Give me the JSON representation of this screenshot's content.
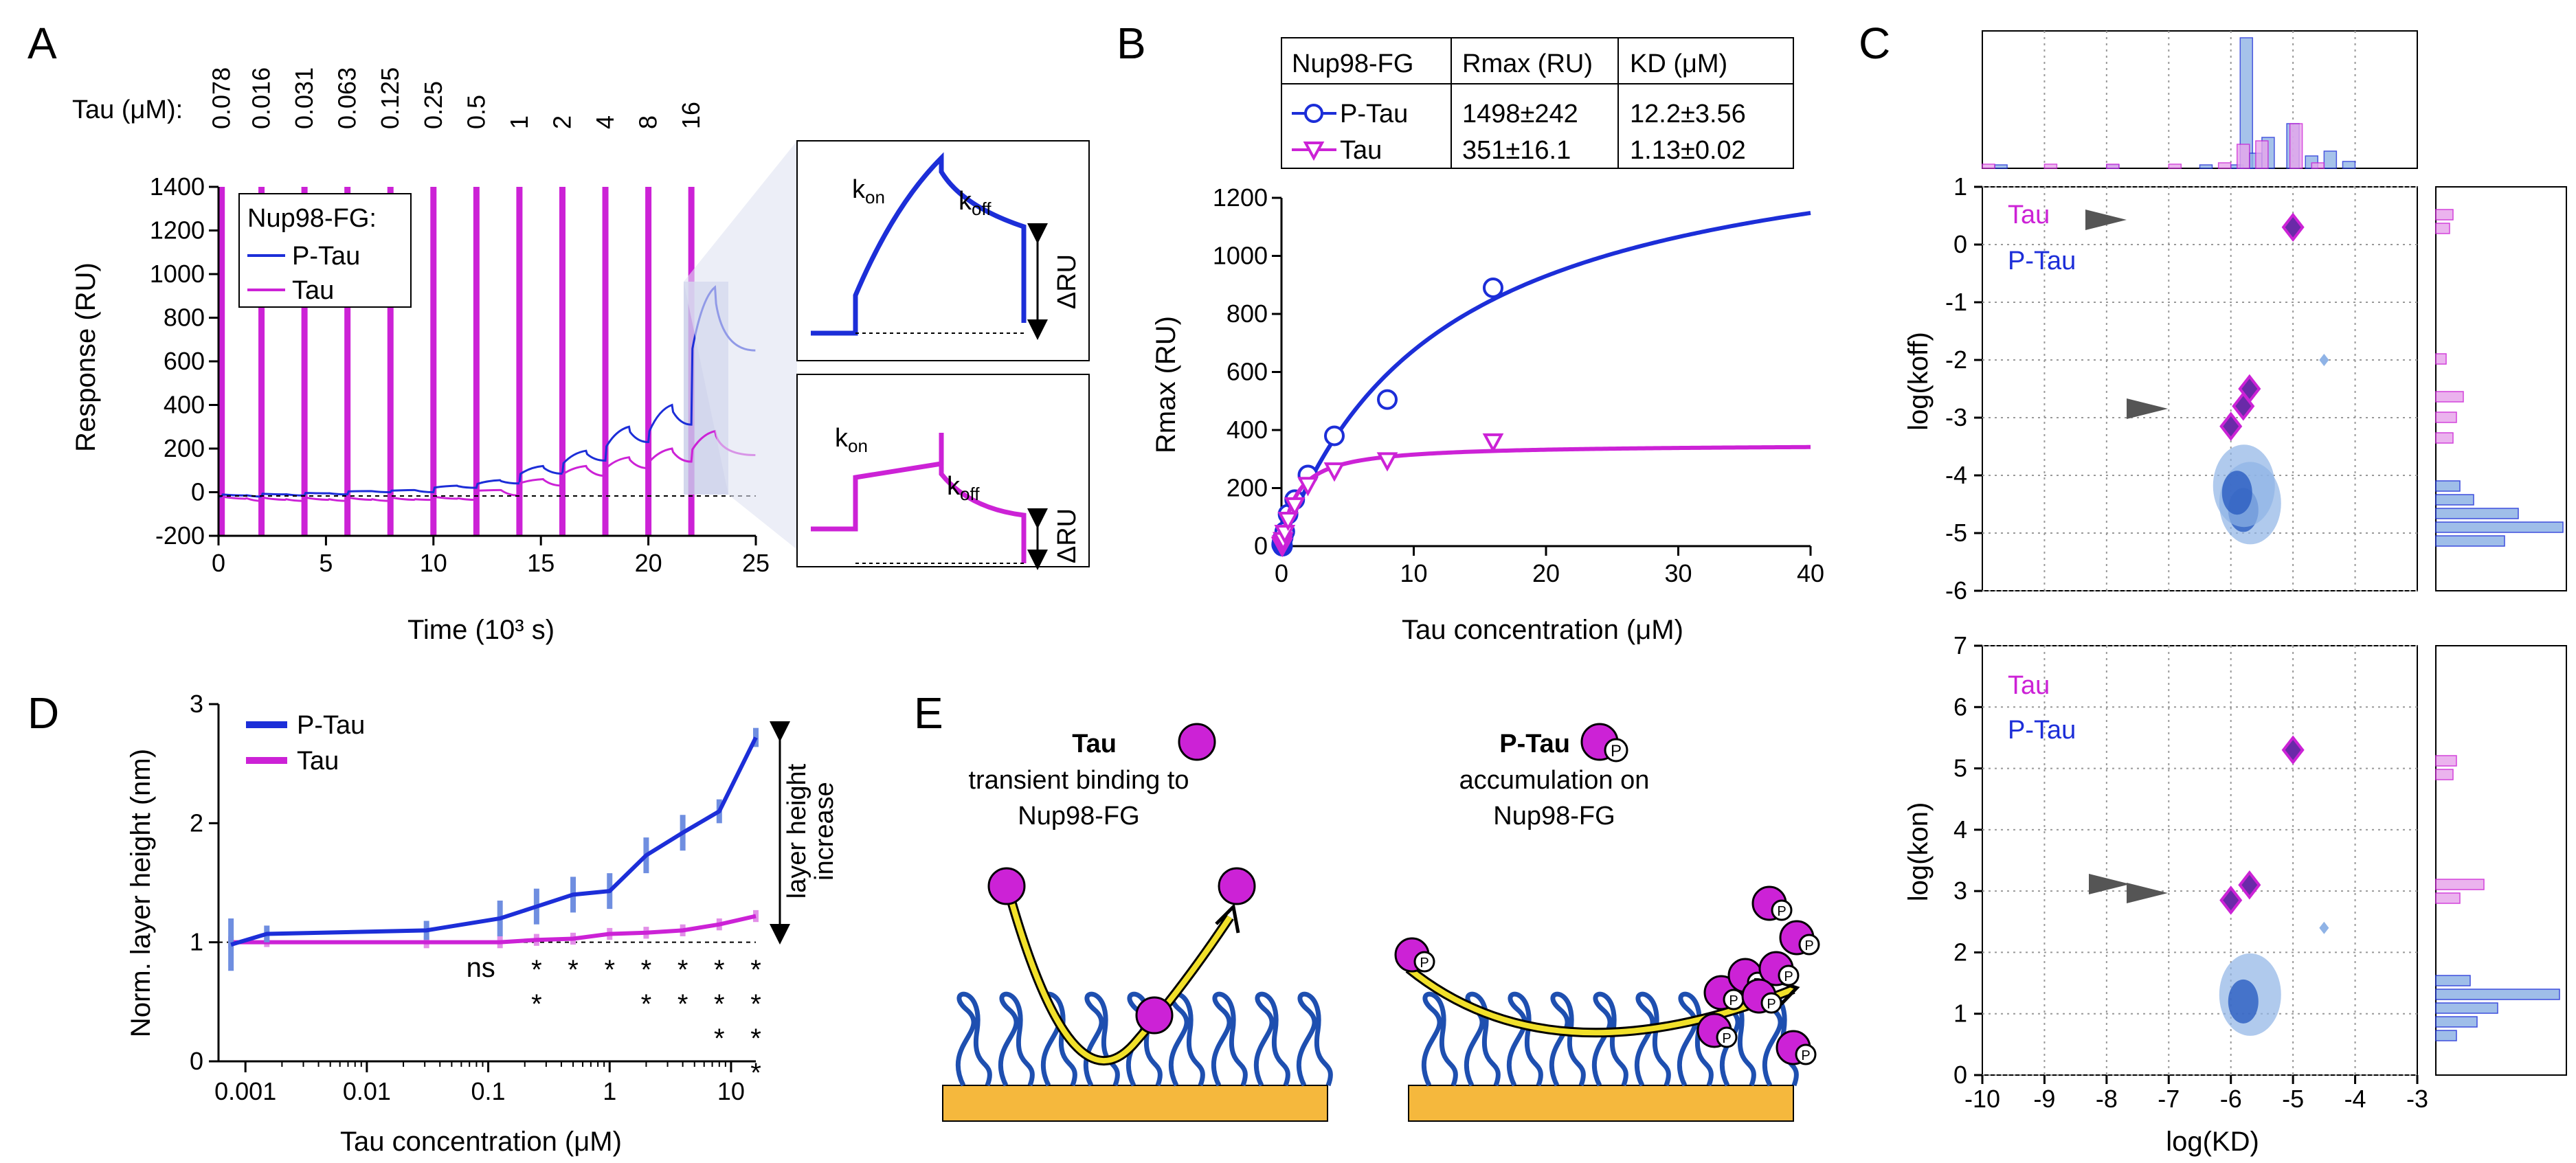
{
  "colors": {
    "ptau": "#1c2ed8",
    "tau": "#cc22d6",
    "ptau_light": "#8fb3e6",
    "tau_light": "#e8a6ec",
    "arrow": "#555555",
    "gold": "#f5b83d",
    "fg": "#1e4fb0",
    "yellow": "#f1e02a"
  },
  "panels": {
    "a": "A",
    "b": "B",
    "c": "C",
    "d": "D",
    "e": "E"
  },
  "panelA": {
    "tau_label": "Tau (μM):",
    "concentrations": [
      "0.078",
      "0.016",
      "0.031",
      "0.063",
      "0.125",
      "0.25",
      "0.5",
      "1",
      "2",
      "4",
      "8",
      "16"
    ],
    "legend_title": "Nup98-FG:",
    "legend": [
      "P-Tau",
      "Tau"
    ],
    "ylabel": "Response (RU)",
    "xlabel": "Time (10³ s)",
    "inset": {
      "kon": "k",
      "on": "on",
      "koff": "k",
      "off": "off",
      "dru": "ΔRU"
    }
  },
  "panelB": {
    "table_headers": [
      "Nup98-FG",
      "Rmax (RU)",
      "KD (μM)"
    ],
    "table_rows": [
      {
        "name": "P-Tau",
        "rmax": "1498±242",
        "kd": "12.2±3.56"
      },
      {
        "name": "Tau",
        "rmax": "351±16.1",
        "kd": "1.13±0.02"
      }
    ],
    "xlabel": "Tau concentration (μM)",
    "ylabel": "Rmax (RU)"
  },
  "panelC": {
    "legend": [
      "Tau",
      "P-Tau"
    ],
    "ylabel_top": "log(koff)",
    "ylabel_bottom": "log(kon)",
    "xlabel": "log(KD)"
  },
  "panelD": {
    "legend": [
      "P-Tau",
      "Tau"
    ],
    "ylabel": "Norm. layer height (nm)",
    "xlabel": "Tau concentration (μM)",
    "bracket_label": [
      "layer height",
      "increase"
    ],
    "ns": "ns"
  },
  "panelE": {
    "left_title": "Tau",
    "left_sub": [
      "transient binding to",
      "Nup98-FG"
    ],
    "right_title": "P-Tau",
    "right_sub": [
      "accumulation on",
      "Nup98-FG"
    ],
    "p_label": "P"
  },
  "chart_data": [
    {
      "id": "A",
      "type": "line",
      "xlabel": "Time (10³ s)",
      "ylabel": "Response (RU)",
      "xlim": [
        0,
        25
      ],
      "ylim": [
        -200,
        1400
      ],
      "xticks": [
        0,
        5,
        10,
        15,
        20,
        25
      ],
      "yticks": [
        -200,
        0,
        200,
        400,
        600,
        800,
        1000,
        1200,
        1400
      ],
      "injection_times": [
        0.15,
        2,
        4,
        6,
        8,
        10,
        12,
        14,
        16,
        18,
        20,
        22
      ],
      "series": [
        {
          "name": "P-Tau",
          "plateaus": [
            -15,
            -10,
            -5,
            5,
            10,
            30,
            55,
            120,
            190,
            300,
            400,
            940
          ],
          "dissoc": [
            -20,
            -15,
            -10,
            0,
            0,
            20,
            40,
            85,
            145,
            230,
            310,
            650
          ]
        },
        {
          "name": "Tau",
          "plateaus": [
            -30,
            -35,
            -35,
            -35,
            -35,
            -30,
            10,
            60,
            120,
            160,
            200,
            280
          ],
          "dissoc": [
            -40,
            -40,
            -40,
            -40,
            -35,
            -35,
            -15,
            30,
            75,
            110,
            140,
            170
          ]
        }
      ]
    },
    {
      "id": "B",
      "type": "scatter",
      "xlabel": "Tau concentration (μM)",
      "ylabel": "Rmax (RU)",
      "xlim": [
        0,
        40
      ],
      "ylim": [
        0,
        1200
      ],
      "xticks": [
        0,
        10,
        20,
        30,
        40
      ],
      "yticks": [
        0,
        200,
        400,
        600,
        800,
        1000,
        1200
      ],
      "series": [
        {
          "name": "P-Tau",
          "x": [
            0.078,
            0.016,
            0.031,
            0.063,
            0.125,
            0.25,
            0.5,
            1,
            2,
            4,
            8,
            16
          ],
          "y": [
            0,
            5,
            10,
            20,
            30,
            50,
            110,
            160,
            245,
            380,
            505,
            890
          ],
          "fit": {
            "Rmax": 1498,
            "KD": 12.2
          }
        },
        {
          "name": "Tau",
          "x": [
            0.078,
            0.016,
            0.031,
            0.063,
            0.125,
            0.25,
            0.5,
            1,
            2,
            4,
            8,
            16
          ],
          "y": [
            0,
            2,
            5,
            10,
            20,
            45,
            90,
            140,
            210,
            260,
            295,
            360
          ],
          "fit": {
            "Rmax": 351,
            "KD": 1.13
          }
        }
      ]
    },
    {
      "id": "C-koff",
      "type": "heatmap",
      "xlabel": "log(KD)",
      "ylabel": "log(koff)",
      "xlim": [
        -10,
        -3
      ],
      "ylim": [
        -6,
        1
      ],
      "xticks": [
        -10,
        -9,
        -8,
        -7,
        -6,
        -5,
        -4,
        -3
      ],
      "yticks": [
        -6,
        -5,
        -4,
        -3,
        -2,
        -1,
        0,
        1
      ],
      "series": [
        {
          "name": "Tau",
          "clusters": [
            [
              -5,
              0.3
            ],
            [
              -5.7,
              -2.5
            ],
            [
              -5.8,
              -2.8
            ],
            [
              -6,
              -3.15
            ]
          ]
        },
        {
          "name": "P-Tau",
          "clusters": [
            [
              -5.8,
              -4.6
            ],
            [
              -5.9,
              -4.3
            ],
            [
              -4.5,
              -2
            ]
          ]
        }
      ]
    },
    {
      "id": "C-kon",
      "type": "heatmap",
      "xlabel": "log(KD)",
      "ylabel": "log(kon)",
      "xlim": [
        -10,
        -3
      ],
      "ylim": [
        0,
        7
      ],
      "xticks": [
        -10,
        -9,
        -8,
        -7,
        -6,
        -5,
        -4,
        -3
      ],
      "yticks": [
        0,
        1,
        2,
        3,
        4,
        5,
        6,
        7
      ],
      "series": [
        {
          "name": "Tau",
          "clusters": [
            [
              -5,
              5.3
            ],
            [
              -5.7,
              3.1
            ],
            [
              -6,
              2.85
            ]
          ]
        },
        {
          "name": "P-Tau",
          "clusters": [
            [
              -5.8,
              1.2
            ],
            [
              -4.5,
              2.4
            ]
          ]
        }
      ]
    },
    {
      "id": "D",
      "type": "line",
      "xlabel": "Tau concentration (μM)",
      "ylabel": "Norm. layer height (nm)",
      "xscale": "log",
      "xlim": [
        0.0006,
        16
      ],
      "ylim": [
        0,
        3
      ],
      "xticks": [
        0.001,
        0.01,
        0.1,
        1,
        10
      ],
      "xticklabels": [
        "0.001",
        "0.01",
        "0.1",
        "1",
        "10"
      ],
      "yticks": [
        0,
        1,
        2,
        3
      ],
      "series": [
        {
          "name": "P-Tau",
          "x": [
            0.00076,
            0.0015,
            0.031,
            0.125,
            0.25,
            0.5,
            1,
            2,
            4,
            8,
            16
          ],
          "y": [
            0.98,
            1.07,
            1.1,
            1.2,
            1.3,
            1.4,
            1.43,
            1.73,
            1.92,
            2.1,
            2.72
          ],
          "err": [
            0.22,
            0.07,
            0.08,
            0.15,
            0.15,
            0.15,
            0.15,
            0.15,
            0.15,
            0.1,
            0.08
          ]
        },
        {
          "name": "Tau",
          "x": [
            0.00076,
            0.0015,
            0.031,
            0.125,
            0.25,
            0.5,
            1,
            2,
            4,
            8,
            16
          ],
          "y": [
            1.0,
            1.0,
            1.0,
            1.0,
            1.02,
            1.03,
            1.07,
            1.08,
            1.1,
            1.15,
            1.22
          ],
          "err": [
            0.05,
            0.04,
            0.05,
            0.05,
            0.05,
            0.05,
            0.05,
            0.05,
            0.05,
            0.05,
            0.05
          ]
        }
      ],
      "significance": [
        {
          "x": 0.125,
          "label": "ns"
        },
        {
          "x": 0.25,
          "stars": 2
        },
        {
          "x": 0.5,
          "stars": 1
        },
        {
          "x": 1,
          "stars": 1
        },
        {
          "x": 2,
          "stars": 2
        },
        {
          "x": 4,
          "stars": 2
        },
        {
          "x": 8,
          "stars": 3
        },
        {
          "x": 16,
          "stars": 4
        }
      ]
    }
  ]
}
